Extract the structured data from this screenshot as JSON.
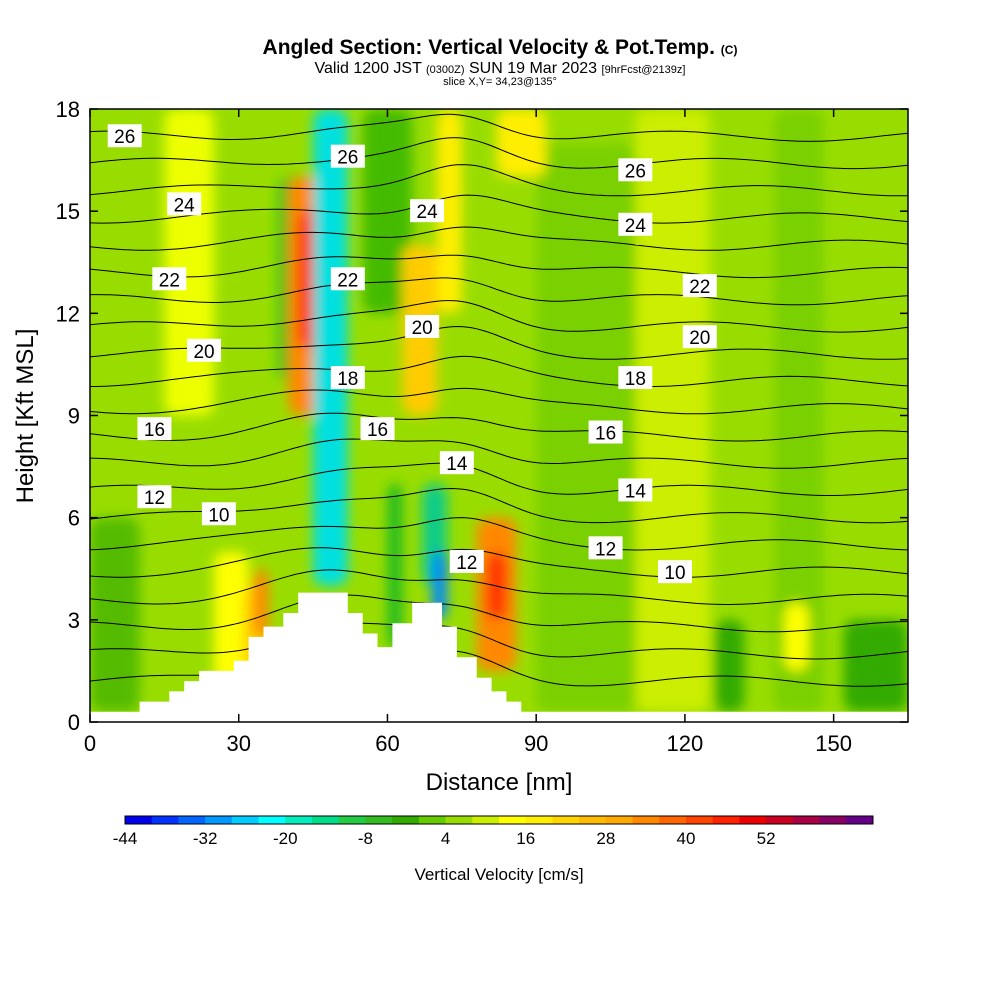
{
  "header": {
    "title_main": "Angled Section: Vertical Velocity & Pot.Temp.",
    "title_unit": "(C)",
    "valid_prefix": "Valid 1200 JST",
    "valid_utc": "(0300Z)",
    "valid_date": "SUN 19 Mar 2023",
    "valid_fcst": "[9hrFcst@2139z]",
    "slice": "slice X,Y= 34,23@135°"
  },
  "chart_data": {
    "type": "heatmap",
    "xlabel": "Distance [nm]",
    "ylabel": "Height [Kft MSL]",
    "xlim": [
      0,
      165
    ],
    "ylim": [
      0,
      18
    ],
    "x_ticks": [
      0,
      30,
      60,
      90,
      120,
      150
    ],
    "y_ticks": [
      0,
      3,
      6,
      9,
      12,
      15,
      18
    ],
    "background_color": "#99dd00",
    "contour_color": "#000000",
    "terrain": [
      [
        0,
        0.3
      ],
      [
        10,
        0.3
      ],
      [
        10,
        0.6
      ],
      [
        16,
        0.6
      ],
      [
        16,
        0.9
      ],
      [
        19,
        0.9
      ],
      [
        19,
        1.2
      ],
      [
        22,
        1.2
      ],
      [
        22,
        1.5
      ],
      [
        29,
        1.5
      ],
      [
        29,
        1.8
      ],
      [
        32,
        1.8
      ],
      [
        32,
        2.5
      ],
      [
        35,
        2.5
      ],
      [
        35,
        2.8
      ],
      [
        39,
        2.8
      ],
      [
        39,
        3.2
      ],
      [
        42,
        3.2
      ],
      [
        42,
        3.8
      ],
      [
        52,
        3.8
      ],
      [
        52,
        3.2
      ],
      [
        55,
        3.2
      ],
      [
        55,
        2.6
      ],
      [
        58,
        2.6
      ],
      [
        58,
        2.2
      ],
      [
        61,
        2.2
      ],
      [
        61,
        2.9
      ],
      [
        65,
        2.9
      ],
      [
        65,
        3.5
      ],
      [
        71,
        3.5
      ],
      [
        71,
        2.8
      ],
      [
        74,
        2.8
      ],
      [
        74,
        1.9
      ],
      [
        78,
        1.9
      ],
      [
        78,
        1.3
      ],
      [
        81,
        1.3
      ],
      [
        81,
        0.9
      ],
      [
        84,
        0.9
      ],
      [
        84,
        0.6
      ],
      [
        87,
        0.6
      ],
      [
        87,
        0.3
      ],
      [
        165,
        0.3
      ]
    ],
    "velocity_cells": [
      {
        "x": [
          90,
          110
        ],
        "y": [
          0.3,
          17
        ],
        "value": -2,
        "color": "#7ad000"
      },
      {
        "x": [
          110,
          125
        ],
        "y": [
          0.3,
          18
        ],
        "value": 5,
        "color": "#ccee00"
      },
      {
        "x": [
          138,
          148
        ],
        "y": [
          0.3,
          18
        ],
        "value": -3,
        "color": "#7ad000"
      },
      {
        "x": [
          0,
          10
        ],
        "y": [
          0.3,
          6
        ],
        "value": -4,
        "color": "#55bb00"
      },
      {
        "x": [
          15,
          25
        ],
        "y": [
          9,
          18
        ],
        "value": 4,
        "color": "#eeff00"
      },
      {
        "x": [
          25,
          32
        ],
        "y": [
          0.3,
          5
        ],
        "value": 8,
        "color": "#ffff00"
      },
      {
        "x": [
          31,
          36
        ],
        "y": [
          1,
          4
        ],
        "value": 16,
        "color": "#ffcc00"
      },
      {
        "x": [
          33,
          36
        ],
        "y": [
          2.5,
          4.5
        ],
        "value": 28,
        "color": "#ff8800"
      },
      {
        "x": [
          38,
          44
        ],
        "y": [
          10,
          16
        ],
        "value": -14,
        "color": "#22bb22"
      },
      {
        "x": [
          40,
          48
        ],
        "y": [
          9,
          16
        ],
        "value": 28,
        "color": "#ff8800"
      },
      {
        "x": [
          42,
          47
        ],
        "y": [
          11,
          15
        ],
        "value": 40,
        "color": "#ff3300"
      },
      {
        "x": [
          45,
          52
        ],
        "y": [
          4,
          18
        ],
        "value": -26,
        "color": "#00e0e0"
      },
      {
        "x": [
          55,
          65
        ],
        "y": [
          12,
          18
        ],
        "value": -10,
        "color": "#44bb00"
      },
      {
        "x": [
          60,
          63
        ],
        "y": [
          2.2,
          7
        ],
        "value": -14,
        "color": "#22bb22"
      },
      {
        "x": [
          67,
          72
        ],
        "y": [
          4,
          7
        ],
        "value": -20,
        "color": "#11cc88"
      },
      {
        "x": [
          69,
          72
        ],
        "y": [
          3,
          5
        ],
        "value": -38,
        "color": "#0088ff"
      },
      {
        "x": [
          63,
          70
        ],
        "y": [
          9,
          14
        ],
        "value": 16,
        "color": "#ffcc00"
      },
      {
        "x": [
          70,
          75
        ],
        "y": [
          12,
          18
        ],
        "value": 10,
        "color": "#ffee00"
      },
      {
        "x": [
          78,
          86
        ],
        "y": [
          1.5,
          6
        ],
        "value": 28,
        "color": "#ff8800"
      },
      {
        "x": [
          80,
          84
        ],
        "y": [
          3,
          5
        ],
        "value": 40,
        "color": "#ff3300"
      },
      {
        "x": [
          82,
          92
        ],
        "y": [
          16,
          18
        ],
        "value": 8,
        "color": "#ffee00"
      },
      {
        "x": [
          126,
          132
        ],
        "y": [
          0.3,
          3
        ],
        "value": -8,
        "color": "#33aa00"
      },
      {
        "x": [
          140,
          145
        ],
        "y": [
          1.5,
          3.5
        ],
        "value": 8,
        "color": "#ffff00"
      },
      {
        "x": [
          152,
          165
        ],
        "y": [
          0.3,
          3
        ],
        "value": -8,
        "color": "#33aa00"
      }
    ],
    "contour_labels": [
      {
        "text": "26",
        "x": 7,
        "y": 17.2
      },
      {
        "text": "26",
        "x": 52,
        "y": 16.6
      },
      {
        "text": "26",
        "x": 110,
        "y": 16.2
      },
      {
        "text": "24",
        "x": 19,
        "y": 15.2
      },
      {
        "text": "24",
        "x": 68,
        "y": 15
      },
      {
        "text": "24",
        "x": 110,
        "y": 14.6
      },
      {
        "text": "22",
        "x": 16,
        "y": 13
      },
      {
        "text": "22",
        "x": 52,
        "y": 13
      },
      {
        "text": "22",
        "x": 123,
        "y": 12.8
      },
      {
        "text": "20",
        "x": 23,
        "y": 10.9
      },
      {
        "text": "20",
        "x": 67,
        "y": 11.6
      },
      {
        "text": "20",
        "x": 123,
        "y": 11.3
      },
      {
        "text": "18",
        "x": 52,
        "y": 10.1
      },
      {
        "text": "18",
        "x": 110,
        "y": 10.1
      },
      {
        "text": "16",
        "x": 13,
        "y": 8.6
      },
      {
        "text": "16",
        "x": 58,
        "y": 8.6
      },
      {
        "text": "16",
        "x": 104,
        "y": 8.5
      },
      {
        "text": "14",
        "x": 74,
        "y": 7.6
      },
      {
        "text": "14",
        "x": 110,
        "y": 6.8
      },
      {
        "text": "12",
        "x": 13,
        "y": 6.6
      },
      {
        "text": "12",
        "x": 76,
        "y": 4.7
      },
      {
        "text": "12",
        "x": 104,
        "y": 5.1
      },
      {
        "text": "10",
        "x": 26,
        "y": 6.1
      },
      {
        "text": "10",
        "x": 118,
        "y": 4.4
      }
    ],
    "theta_contours": [
      {
        "base": 1.2,
        "step": 0.8,
        "count": 21
      }
    ],
    "colorbar": {
      "title": "Vertical Velocity [cm/s]",
      "tick_labels": [
        "-44",
        "-32",
        "-20",
        "-8",
        "4",
        "16",
        "28",
        "40",
        "52"
      ],
      "colors": [
        "#0000ee",
        "#0033ff",
        "#0066ff",
        "#0099ff",
        "#00ccff",
        "#00ffff",
        "#00eebb",
        "#00dd88",
        "#22cc44",
        "#33bb22",
        "#33aa00",
        "#66cc00",
        "#99dd00",
        "#ccee00",
        "#ffff00",
        "#ffee00",
        "#ffd400",
        "#ffbb00",
        "#ffaa00",
        "#ff8800",
        "#ff6600",
        "#ff4400",
        "#ff2200",
        "#ee0000",
        "#cc0022",
        "#aa0044",
        "#880066",
        "#660088"
      ]
    }
  }
}
